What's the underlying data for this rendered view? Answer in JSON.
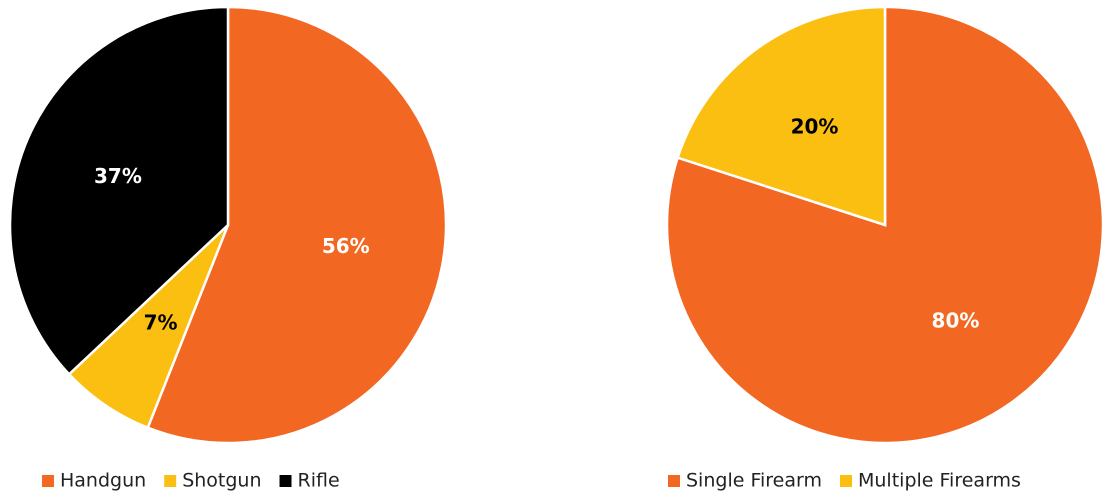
{
  "chart_data": [
    {
      "type": "pie",
      "categories": [
        "Handgun",
        "Shotgun",
        "Rifle"
      ],
      "values": [
        56,
        7,
        37
      ],
      "value_labels": [
        "56%",
        "7%",
        "37%"
      ],
      "colors": [
        "#f26722",
        "#fbbf12",
        "#000000"
      ],
      "legend": "bottom"
    },
    {
      "type": "pie",
      "categories": [
        "Single Firearm",
        "Multiple Firearms"
      ],
      "values": [
        80,
        20
      ],
      "value_labels": [
        "80%",
        "20%"
      ],
      "colors": [
        "#f26722",
        "#fbbf12"
      ],
      "legend": "bottom"
    }
  ]
}
